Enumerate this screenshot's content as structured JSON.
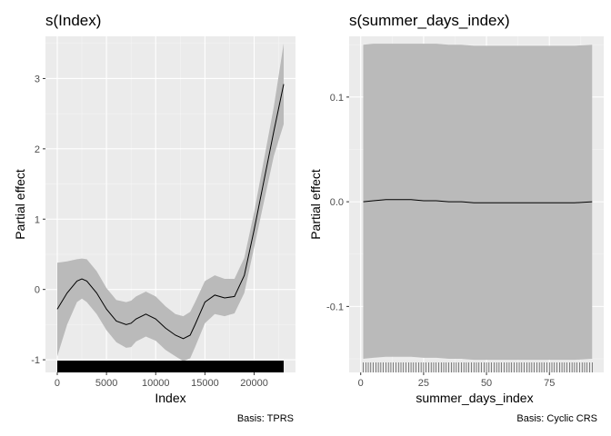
{
  "chart_data": [
    {
      "type": "line",
      "title": "s(Index)",
      "xlabel": "Index",
      "ylabel": "Partial effect",
      "caption": "Basis: TPRS",
      "xlim": [
        -1200,
        24200
      ],
      "ylim": [
        -1.18,
        3.6
      ],
      "xticks": [
        0,
        5000,
        10000,
        15000,
        20000
      ],
      "xtick_labels": [
        "0",
        "5000",
        "10000",
        "15000",
        "20000"
      ],
      "yticks": [
        -1,
        0,
        1,
        2,
        3
      ],
      "ytick_labels": [
        "-1",
        "0",
        "1",
        "2",
        "3"
      ],
      "grid": true,
      "rug": {
        "from": 0,
        "to": 23000,
        "style": "dense"
      },
      "series": [
        {
          "x": [
            0,
            1000,
            2000,
            2500,
            3000,
            4000,
            5000,
            6000,
            7000,
            7500,
            8000,
            9000,
            10000,
            11000,
            12000,
            12800,
            13500,
            14000,
            15000,
            16000,
            17000,
            18000,
            19000,
            20000,
            21000,
            22000,
            23000
          ],
          "y": [
            -0.28,
            -0.05,
            0.12,
            0.15,
            0.12,
            -0.05,
            -0.28,
            -0.45,
            -0.5,
            -0.48,
            -0.42,
            -0.35,
            -0.42,
            -0.55,
            -0.65,
            -0.7,
            -0.65,
            -0.5,
            -0.18,
            -0.08,
            -0.12,
            -0.1,
            0.2,
            0.85,
            1.55,
            2.25,
            2.92
          ],
          "lower": [
            -0.95,
            -0.5,
            -0.18,
            -0.13,
            -0.18,
            -0.35,
            -0.58,
            -0.75,
            -0.83,
            -0.82,
            -0.74,
            -0.67,
            -0.73,
            -0.86,
            -0.95,
            -1.02,
            -0.98,
            -0.82,
            -0.48,
            -0.35,
            -0.38,
            -0.34,
            -0.05,
            0.6,
            1.25,
            1.9,
            2.35
          ],
          "upper": [
            0.38,
            0.4,
            0.43,
            0.44,
            0.43,
            0.26,
            0.02,
            -0.15,
            -0.18,
            -0.16,
            -0.1,
            -0.03,
            -0.1,
            -0.24,
            -0.35,
            -0.38,
            -0.32,
            -0.18,
            0.12,
            0.2,
            0.15,
            0.15,
            0.45,
            1.1,
            1.85,
            2.6,
            3.5
          ]
        }
      ]
    },
    {
      "type": "line",
      "title": "s(summer_days_index)",
      "xlabel": "summer_days_index",
      "ylabel": "Partial effect",
      "caption": "Basis: Cyclic CRS",
      "xlim": [
        -4.6,
        96.6
      ],
      "ylim": [
        -0.163,
        0.158
      ],
      "xticks": [
        0,
        25,
        50,
        75
      ],
      "xtick_labels": [
        "0",
        "25",
        "50",
        "75"
      ],
      "yticks": [
        -0.1,
        0.0,
        0.1
      ],
      "ytick_labels": [
        "-0.1",
        "0.0",
        "0.1"
      ],
      "grid": true,
      "rug": {
        "from": 1,
        "to": 92,
        "step": 1
      },
      "series": [
        {
          "x": [
            1,
            5,
            10,
            15,
            20,
            25,
            30,
            35,
            40,
            45,
            50,
            55,
            60,
            65,
            70,
            75,
            80,
            85,
            92
          ],
          "y": [
            0.0,
            0.001,
            0.002,
            0.002,
            0.002,
            0.001,
            0.001,
            0.0,
            0.0,
            -0.001,
            -0.001,
            -0.001,
            -0.001,
            -0.001,
            -0.001,
            -0.001,
            -0.001,
            -0.001,
            0.0
          ],
          "lower": [
            -0.15,
            -0.149,
            -0.148,
            -0.148,
            -0.148,
            -0.149,
            -0.149,
            -0.15,
            -0.15,
            -0.151,
            -0.151,
            -0.151,
            -0.151,
            -0.151,
            -0.151,
            -0.151,
            -0.151,
            -0.151,
            -0.15
          ],
          "upper": [
            0.15,
            0.151,
            0.151,
            0.151,
            0.151,
            0.151,
            0.151,
            0.15,
            0.15,
            0.149,
            0.149,
            0.149,
            0.149,
            0.149,
            0.149,
            0.149,
            0.149,
            0.149,
            0.15
          ]
        }
      ]
    }
  ]
}
